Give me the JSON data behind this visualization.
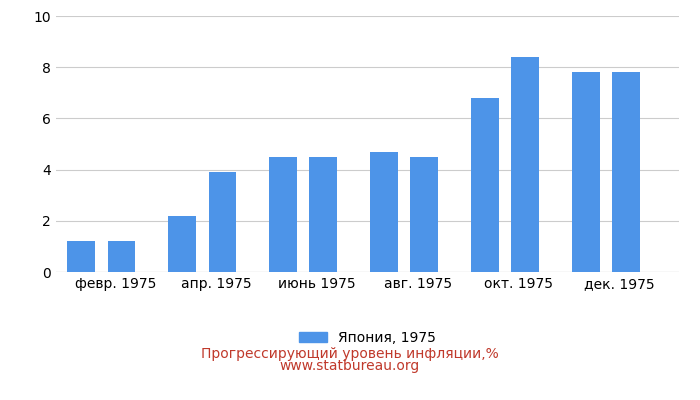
{
  "values": [
    1.2,
    1.2,
    2.2,
    3.9,
    4.5,
    4.5,
    4.7,
    4.5,
    6.8,
    8.4,
    7.8,
    7.8
  ],
  "x_tick_labels": [
    "февр. 1975",
    "апр. 1975",
    "июнь 1975",
    "авг. 1975",
    "окт. 1975",
    "дек. 1975"
  ],
  "bar_color": "#4d94e8",
  "ylim": [
    0,
    10
  ],
  "yticks": [
    0,
    2,
    4,
    6,
    8,
    10
  ],
  "legend_label": "Япония, 1975",
  "title": "Прогрессирующий уровень инфляции,%",
  "subtitle": "www.statbureau.org",
  "title_color": "#c0392b",
  "background_color": "#ffffff",
  "grid_color": "#cccccc",
  "title_fontsize": 10,
  "subtitle_fontsize": 10,
  "tick_fontsize": 10,
  "legend_fontsize": 10
}
